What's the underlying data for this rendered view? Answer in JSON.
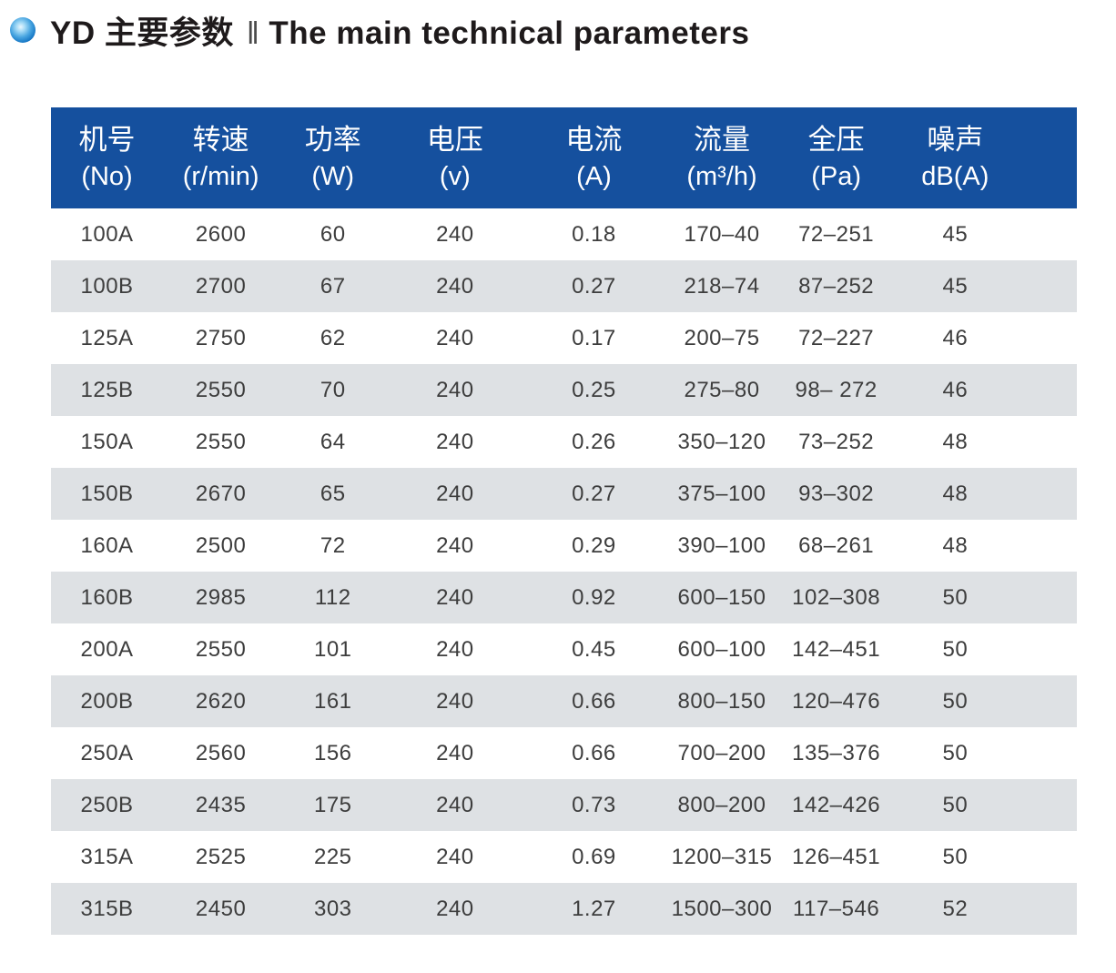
{
  "header": {
    "title_cn": "YD 主要参数",
    "separator": "‖",
    "title_en": "The main technical parameters"
  },
  "colors": {
    "header_bg": "#15509e",
    "stripe_bg": "#dee1e4",
    "bullet_blue": "#1273c2"
  },
  "table": {
    "columns": [
      {
        "name_cn": "机号",
        "unit": "(No)"
      },
      {
        "name_cn": "转速",
        "unit": "(r/min)"
      },
      {
        "name_cn": "功率",
        "unit": "(W)"
      },
      {
        "name_cn": "电压",
        "unit": "(v)"
      },
      {
        "name_cn": "电流",
        "unit": "(A)"
      },
      {
        "name_cn": "流量",
        "unit": "(m³/h)"
      },
      {
        "name_cn": "全压",
        "unit": "(Pa)"
      },
      {
        "name_cn": "噪声",
        "unit": "dB(A)"
      }
    ],
    "rows": [
      [
        "100A",
        "2600",
        "60",
        "240",
        "0.18",
        "170–40",
        "72–251",
        "45"
      ],
      [
        "100B",
        "2700",
        "67",
        "240",
        "0.27",
        "218–74",
        "87–252",
        "45"
      ],
      [
        "125A",
        "2750",
        "62",
        "240",
        "0.17",
        "200–75",
        "72–227",
        "46"
      ],
      [
        "125B",
        "2550",
        "70",
        "240",
        "0.25",
        "275–80",
        "98– 272",
        "46"
      ],
      [
        "150A",
        "2550",
        "64",
        "240",
        "0.26",
        "350–120",
        "73–252",
        "48"
      ],
      [
        "150B",
        "2670",
        "65",
        "240",
        "0.27",
        "375–100",
        "93–302",
        "48"
      ],
      [
        "160A",
        "2500",
        "72",
        "240",
        "0.29",
        "390–100",
        "68–261",
        "48"
      ],
      [
        "160B",
        "2985",
        "112",
        "240",
        "0.92",
        "600–150",
        "102–308",
        "50"
      ],
      [
        "200A",
        "2550",
        "101",
        "240",
        "0.45",
        "600–100",
        "142–451",
        "50"
      ],
      [
        "200B",
        "2620",
        "161",
        "240",
        "0.66",
        "800–150",
        "120–476",
        "50"
      ],
      [
        "250A",
        "2560",
        "156",
        "240",
        "0.66",
        "700–200",
        "135–376",
        "50"
      ],
      [
        "250B",
        "2435",
        "175",
        "240",
        "0.73",
        "800–200",
        "142–426",
        "50"
      ],
      [
        "315A",
        "2525",
        "225",
        "240",
        "0.69",
        "1200–315",
        "126–451",
        "50"
      ],
      [
        "315B",
        "2450",
        "303",
        "240",
        "1.27",
        "1500–300",
        "117–546",
        "52"
      ]
    ]
  }
}
